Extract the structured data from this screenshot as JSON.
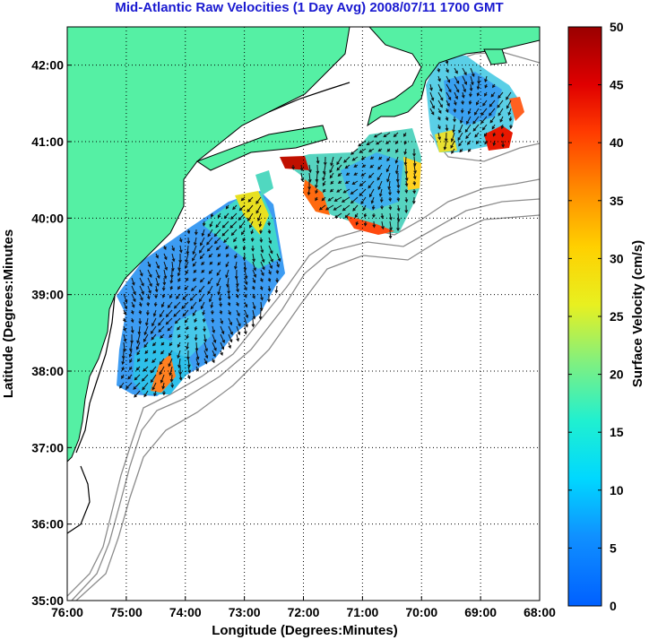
{
  "title": "Mid-Atlantic Raw Velocities (1 Day Avg) 2008/07/11 1700 GMT",
  "xlabel": "Longitude (Degrees:Minutes)",
  "ylabel": "Latitude (Degrees:Minutes",
  "colorbar_label": "Surface Velocity (cm/s)",
  "x_ticks": [
    {
      "value": -76,
      "label": "76:00"
    },
    {
      "value": -75,
      "label": "75:00"
    },
    {
      "value": -74,
      "label": "74:00"
    },
    {
      "value": -73,
      "label": "73:00"
    },
    {
      "value": -72,
      "label": "72:00"
    },
    {
      "value": -71,
      "label": "71:00"
    },
    {
      "value": -70,
      "label": "70:00"
    },
    {
      "value": -69,
      "label": "69:00"
    },
    {
      "value": -68,
      "label": "68:00"
    }
  ],
  "y_ticks": [
    {
      "value": 35,
      "label": "35:00"
    },
    {
      "value": 36,
      "label": "36:00"
    },
    {
      "value": 37,
      "label": "37:00"
    },
    {
      "value": 38,
      "label": "38:00"
    },
    {
      "value": 39,
      "label": "39:00"
    },
    {
      "value": 40,
      "label": "40:00"
    },
    {
      "value": 41,
      "label": "41:00"
    },
    {
      "value": 42,
      "label": "42:00"
    }
  ],
  "colorbar_ticks": [
    "0",
    "5",
    "10",
    "15",
    "20",
    "25",
    "30",
    "35",
    "40",
    "45",
    "50"
  ],
  "colors": {
    "land": "#55f0a4",
    "title": "#1a1ad0",
    "bathymetry": "#8c8c8c",
    "grid": "#000000"
  }
}
